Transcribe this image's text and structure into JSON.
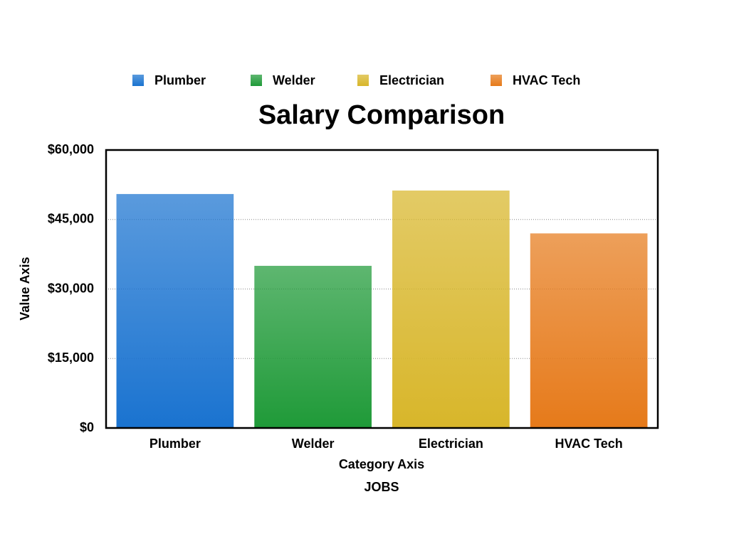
{
  "chart_data": {
    "type": "bar",
    "title": "Salary Comparison",
    "x_label": "Category Axis",
    "x_sublabel": "JOBS",
    "y_label": "Value Axis",
    "categories": [
      "Plumber",
      "Welder",
      "Electrician",
      "HVAC Tech"
    ],
    "values": [
      50500,
      35000,
      51250,
      42000
    ],
    "colors": [
      "#1a73d0",
      "#1f9a38",
      "#d8b62a",
      "#e67a1a"
    ],
    "ylim": [
      0,
      60000
    ],
    "yticks": [
      {
        "value": 0,
        "label": "$0"
      },
      {
        "value": 15000,
        "label": "$15,000"
      },
      {
        "value": 30000,
        "label": "$30,000"
      },
      {
        "value": 45000,
        "label": "$45,000"
      },
      {
        "value": 60000,
        "label": "$60,000"
      }
    ],
    "grid": true,
    "legend": "top"
  }
}
